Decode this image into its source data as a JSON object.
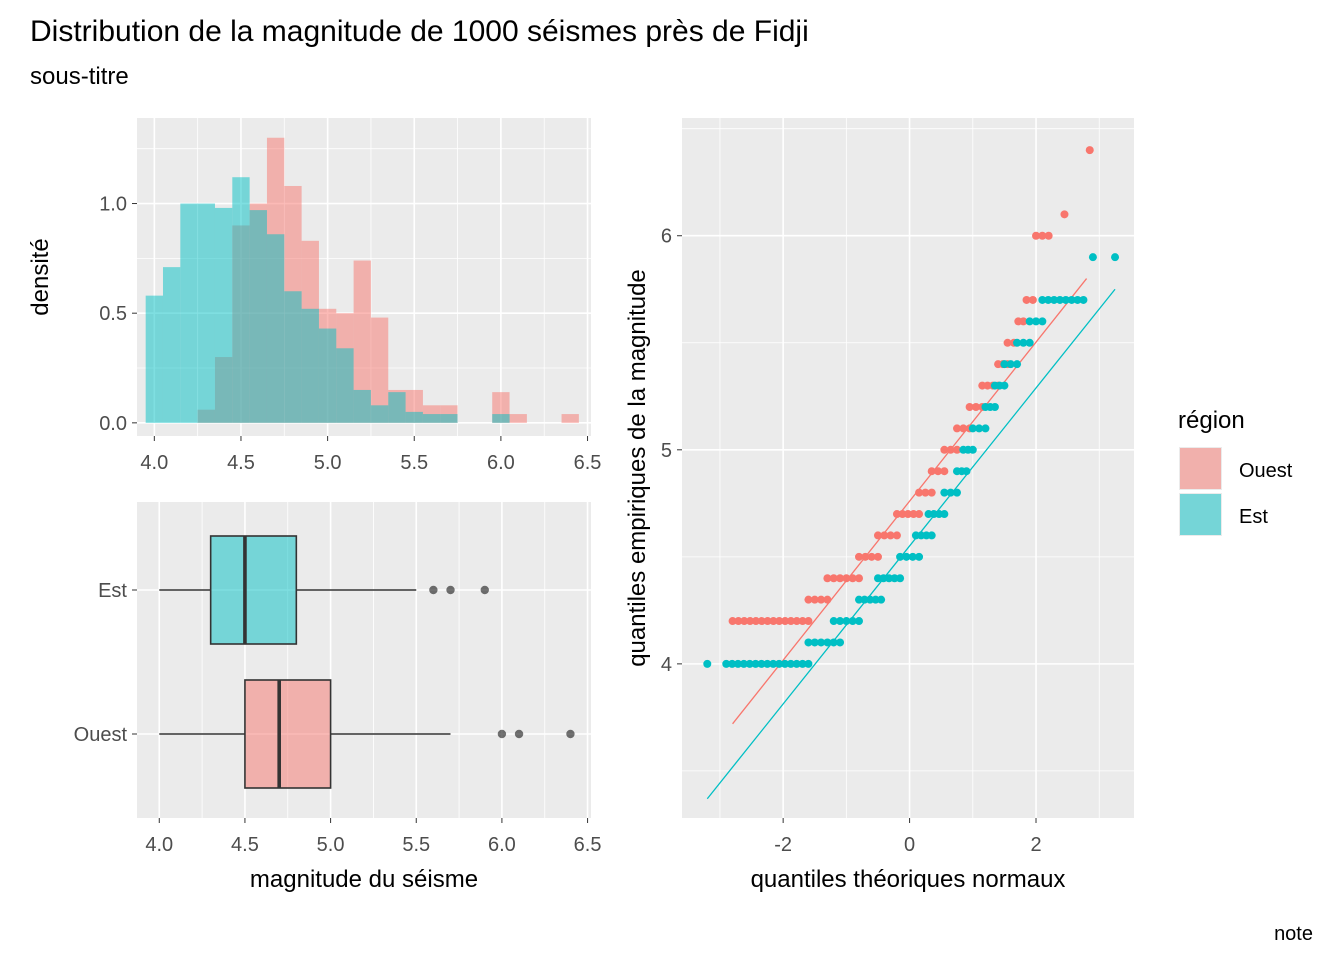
{
  "figure": {
    "title": "Distribution de la magnitude de 1000 séismes près de Fidji",
    "subtitle": "sous-titre",
    "caption": "note"
  },
  "colors": {
    "Ouest": "#F8766D",
    "Est": "#00BFC4",
    "panel_background": "#EBEBEB",
    "grid": "#FFFFFF",
    "boxplot_outline": "#333333"
  },
  "legend": {
    "title": "région",
    "position": "right",
    "items": [
      {
        "label": "Ouest",
        "color": "#F8766D"
      },
      {
        "label": "Est",
        "color": "#00BFC4"
      }
    ]
  },
  "chart_data": [
    {
      "id": "histogram",
      "type": "bar",
      "subtype": "density histogram (overlaid)",
      "xlabel": "",
      "ylabel": "densité",
      "xlim": [
        3.9,
        6.52
      ],
      "ylim": [
        -0.06,
        1.39
      ],
      "x_ticks": [
        "4.0",
        "4.5",
        "5.0",
        "5.5",
        "6.0",
        "6.5"
      ],
      "y_ticks": [
        "0.0",
        "0.5",
        "1.0"
      ],
      "bin_width": 0.1,
      "bin_starts": [
        3.95,
        4.05,
        4.15,
        4.25,
        4.35,
        4.45,
        4.55,
        4.65,
        4.75,
        4.85,
        4.95,
        5.05,
        5.15,
        5.25,
        5.35,
        5.45,
        5.55,
        5.65,
        5.75,
        5.85,
        5.95,
        6.05,
        6.15,
        6.25,
        6.35
      ],
      "series": [
        {
          "name": "Ouest",
          "values": [
            0,
            0,
            0,
            0.06,
            0.3,
            0.9,
            1.0,
            1.3,
            1.08,
            0.83,
            0.52,
            0.5,
            0.74,
            0.48,
            0.15,
            0.15,
            0.08,
            0.08,
            0,
            0,
            0.14,
            0.04,
            0,
            0,
            0.04
          ]
        },
        {
          "name": "Est",
          "values": [
            0.58,
            0.71,
            1.0,
            1.0,
            0.98,
            1.12,
            0.97,
            0.86,
            0.6,
            0.52,
            0.43,
            0.34,
            0.15,
            0.08,
            0.14,
            0.05,
            0.04,
            0.04,
            0,
            0,
            0.04,
            0,
            0,
            0,
            0
          ]
        }
      ]
    },
    {
      "id": "boxplot",
      "type": "boxplot",
      "xlabel": "magnitude du séisme",
      "ylabel": "",
      "xlim": [
        3.87,
        6.52
      ],
      "x_ticks": [
        "4.0",
        "4.5",
        "5.0",
        "5.5",
        "6.0",
        "6.5"
      ],
      "categories": [
        "Est",
        "Ouest"
      ],
      "series": [
        {
          "name": "Est",
          "min": 4.0,
          "q1": 4.3,
          "median": 4.5,
          "q3": 4.8,
          "max": 5.5,
          "outliers": [
            5.6,
            5.7,
            5.9
          ]
        },
        {
          "name": "Ouest",
          "min": 4.0,
          "q1": 4.5,
          "median": 4.7,
          "q3": 5.0,
          "max": 5.7,
          "outliers": [
            6.0,
            6.1,
            6.4
          ]
        }
      ]
    },
    {
      "id": "qqplot",
      "type": "scatter",
      "subtype": "normal Q-Q plot",
      "xlabel": "quantiles théoriques normaux",
      "ylabel": "quantiles empiriques de la magnitude",
      "xlim": [
        -3.6,
        3.55
      ],
      "ylim": [
        3.28,
        6.55
      ],
      "x_ticks": [
        "-2",
        "0",
        "2"
      ],
      "y_ticks": [
        "4",
        "5",
        "6"
      ],
      "series": [
        {
          "name": "Ouest",
          "line": [
            [
              -2.8,
              3.72
            ],
            [
              2.8,
              5.8
            ]
          ],
          "steps": [
            [
              4.2,
              -2.8,
              -1.6
            ],
            [
              4.3,
              -1.6,
              -1.3
            ],
            [
              4.4,
              -1.3,
              -0.8
            ],
            [
              4.5,
              -0.8,
              -0.5
            ],
            [
              4.6,
              -0.5,
              -0.2
            ],
            [
              4.7,
              -0.2,
              0.15
            ],
            [
              4.8,
              0.15,
              0.35
            ],
            [
              4.9,
              0.35,
              0.55
            ],
            [
              5.0,
              0.55,
              0.75
            ],
            [
              5.1,
              0.75,
              0.95
            ],
            [
              5.2,
              0.95,
              1.15
            ],
            [
              5.3,
              1.15,
              1.4
            ],
            [
              5.4,
              1.4,
              1.55
            ],
            [
              5.5,
              1.55,
              1.65
            ],
            [
              5.6,
              1.72,
              1.8
            ],
            [
              5.7,
              1.85,
              1.95
            ],
            [
              6.0,
              2.0,
              2.2
            ],
            [
              6.1,
              2.45,
              2.45
            ],
            [
              6.4,
              2.85,
              2.85
            ]
          ]
        },
        {
          "name": "Est",
          "line": [
            [
              -3.2,
              3.37
            ],
            [
              3.25,
              5.75
            ]
          ],
          "steps": [
            [
              4.0,
              -3.2,
              -3.2
            ],
            [
              4.0,
              -2.9,
              -1.6
            ],
            [
              4.1,
              -1.6,
              -1.1
            ],
            [
              4.2,
              -1.2,
              -0.8
            ],
            [
              4.3,
              -0.8,
              -0.45
            ],
            [
              4.4,
              -0.5,
              -0.15
            ],
            [
              4.5,
              -0.15,
              0.15
            ],
            [
              4.6,
              0.1,
              0.35
            ],
            [
              4.7,
              0.3,
              0.55
            ],
            [
              4.8,
              0.55,
              0.75
            ],
            [
              4.9,
              0.75,
              0.9
            ],
            [
              5.0,
              0.85,
              1.0
            ],
            [
              5.1,
              1.0,
              1.2
            ],
            [
              5.2,
              1.2,
              1.35
            ],
            [
              5.3,
              1.35,
              1.5
            ],
            [
              5.4,
              1.5,
              1.7
            ],
            [
              5.5,
              1.7,
              1.9
            ],
            [
              5.6,
              1.9,
              2.1
            ],
            [
              5.7,
              2.1,
              2.75
            ],
            [
              5.9,
              2.9,
              2.9
            ],
            [
              5.9,
              3.25,
              3.25
            ]
          ]
        }
      ]
    }
  ]
}
